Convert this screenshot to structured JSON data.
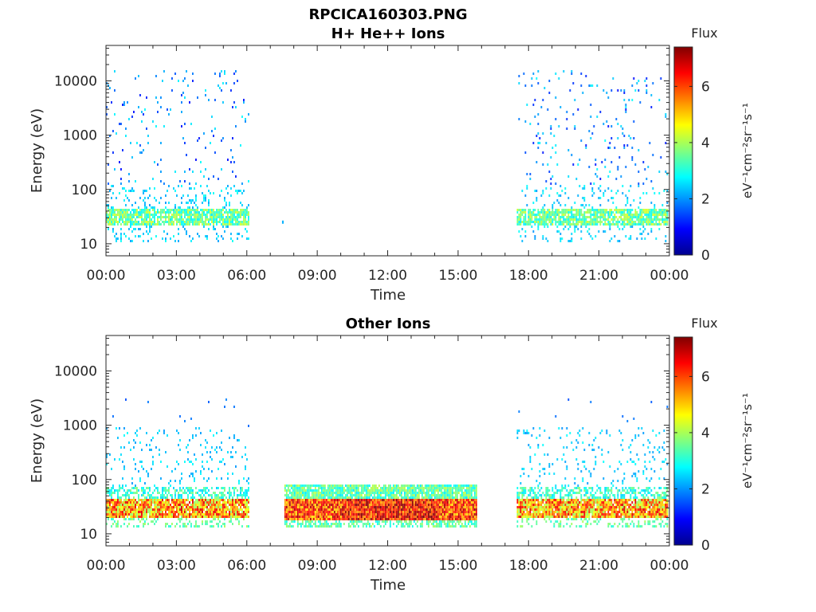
{
  "figure": {
    "title_line1": "RPCICA160303.PNG"
  },
  "colors": {
    "colormap": "jet",
    "axis": "#262626",
    "background": "#ffffff"
  },
  "chart_data": [
    {
      "type": "heatmap",
      "title": "H+ He++ Ions",
      "xlabel": "Time",
      "ylabel": "Energy (eV)",
      "x_scale": "time",
      "x_ticks": [
        "00:00",
        "03:00",
        "06:00",
        "09:00",
        "12:00",
        "15:00",
        "18:00",
        "21:00",
        "00:00"
      ],
      "x_range_hours": [
        0,
        24
      ],
      "y_scale": "log",
      "y_ticks": [
        10,
        100,
        1000,
        10000
      ],
      "y_tick_labels": [
        "10",
        "100",
        "1000",
        "10000"
      ],
      "ylim": [
        6,
        45000
      ],
      "colorbar": {
        "label": "Flux",
        "unit": "eV⁻¹cm⁻²sr⁻¹s⁻¹",
        "range": [
          0,
          7.4
        ],
        "ticks": [
          0,
          2,
          4,
          6
        ],
        "tick_labels": [
          "0",
          "2",
          "4",
          "6"
        ]
      },
      "data_intervals_hours": [
        [
          0.0,
          6.1
        ],
        [
          17.5,
          23.9
        ]
      ],
      "features": [
        {
          "name": "low-energy band",
          "energy_range_eV": [
            20,
            40
          ],
          "flux": 3.6
        },
        {
          "name": "scattered counts",
          "energy_range_eV": [
            10,
            15000
          ],
          "flux": 1.8
        }
      ],
      "isolated_points": [
        {
          "time_h": 7.5,
          "energy_eV": 25,
          "flux": 2.2
        }
      ]
    },
    {
      "type": "heatmap",
      "title": "Other Ions",
      "xlabel": "Time",
      "ylabel": "Energy (eV)",
      "x_scale": "time",
      "x_ticks": [
        "00:00",
        "03:00",
        "06:00",
        "09:00",
        "12:00",
        "15:00",
        "18:00",
        "21:00",
        "00:00"
      ],
      "x_range_hours": [
        0,
        24
      ],
      "y_scale": "log",
      "y_ticks": [
        10,
        100,
        1000,
        10000
      ],
      "y_tick_labels": [
        "10",
        "100",
        "1000",
        "10000"
      ],
      "ylim": [
        6,
        45000
      ],
      "colorbar": {
        "label": "Flux",
        "unit": "eV⁻¹cm⁻²sr⁻¹s⁻¹",
        "range": [
          0,
          7.4
        ],
        "ticks": [
          0,
          2,
          4,
          6
        ],
        "tick_labels": [
          "0",
          "2",
          "4",
          "6"
        ]
      },
      "data_intervals_hours": [
        [
          0.0,
          6.1
        ],
        [
          7.6,
          15.8
        ],
        [
          17.5,
          23.9
        ]
      ],
      "features": [
        {
          "name": "core band (00–06, 17.5–24)",
          "energy_range_eV": [
            18,
            42
          ],
          "peak_flux": 6.6
        },
        {
          "name": "dense band (07.6–15.8)",
          "energy_range_eV": [
            15,
            80
          ],
          "peak_flux": 7.2
        },
        {
          "name": "sparse counts",
          "energy_range_eV": [
            40,
            2500
          ],
          "flux": 2.4
        }
      ]
    }
  ]
}
